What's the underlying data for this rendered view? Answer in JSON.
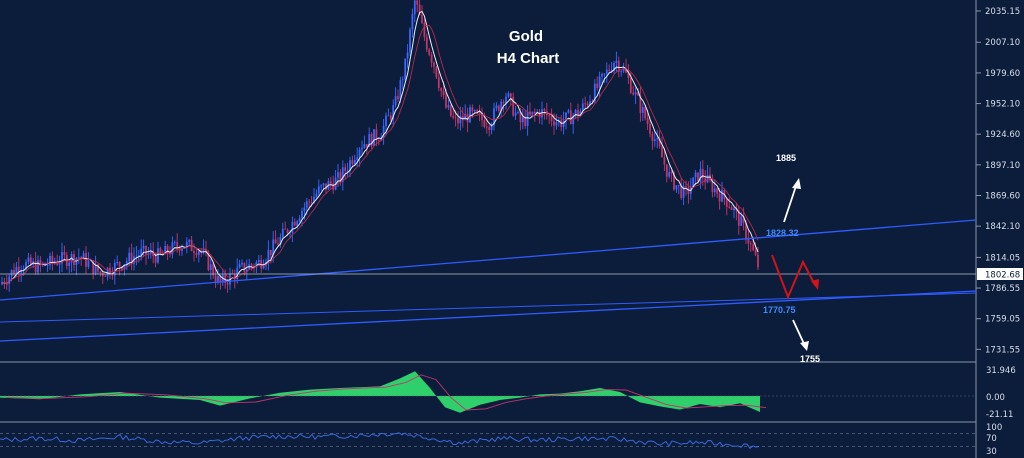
{
  "chart_data": {
    "type": "candlestick",
    "title": "Gold",
    "subtitle": "H4 Chart",
    "instrument": "Gold",
    "timeframe": "H4",
    "price_axis": {
      "ticks": [
        "2035.15",
        "2007.10",
        "1979.60",
        "1952.10",
        "1924.60",
        "1897.10",
        "1869.60",
        "1842.10",
        "1814.05",
        "1786.55",
        "1759.05",
        "1731.55"
      ],
      "range": [
        1722,
        2045
      ]
    },
    "current_price": {
      "label": "1802.68",
      "value": 1802.68
    },
    "annotations": [
      {
        "text": "1885",
        "value": 1885,
        "direction": "up"
      },
      {
        "text": "1828.32",
        "value": 1828.32,
        "kind": "resistance"
      },
      {
        "text": "1770.75",
        "value": 1770.75,
        "kind": "support"
      },
      {
        "text": "1755",
        "value": 1755,
        "direction": "down"
      }
    ],
    "price_path": [
      [
        0,
        1790
      ],
      [
        20,
        1808
      ],
      [
        40,
        1806
      ],
      [
        60,
        1812
      ],
      [
        80,
        1815
      ],
      [
        100,
        1800
      ],
      [
        120,
        1808
      ],
      [
        140,
        1818
      ],
      [
        160,
        1815
      ],
      [
        180,
        1826
      ],
      [
        200,
        1822
      ],
      [
        220,
        1790
      ],
      [
        240,
        1803
      ],
      [
        260,
        1810
      ],
      [
        280,
        1830
      ],
      [
        300,
        1855
      ],
      [
        320,
        1875
      ],
      [
        340,
        1885
      ],
      [
        360,
        1915
      ],
      [
        380,
        1925
      ],
      [
        395,
        1950
      ],
      [
        405,
        1985
      ],
      [
        415,
        2045
      ],
      [
        425,
        2010
      ],
      [
        435,
        1985
      ],
      [
        445,
        1950
      ],
      [
        455,
        1935
      ],
      [
        470,
        1942
      ],
      [
        490,
        1935
      ],
      [
        505,
        1962
      ],
      [
        520,
        1935
      ],
      [
        540,
        1945
      ],
      [
        560,
        1935
      ],
      [
        580,
        1945
      ],
      [
        600,
        1970
      ],
      [
        615,
        1992
      ],
      [
        625,
        1980
      ],
      [
        640,
        1950
      ],
      [
        655,
        1920
      ],
      [
        670,
        1885
      ],
      [
        685,
        1870
      ],
      [
        700,
        1890
      ],
      [
        715,
        1875
      ],
      [
        730,
        1862
      ],
      [
        745,
        1838
      ],
      [
        760,
        1802
      ]
    ],
    "oscillator": {
      "ticks": [
        "31.946",
        "0.00",
        "-21.11"
      ],
      "range": [
        -30,
        40
      ],
      "values": [
        [
          0,
          -2
        ],
        [
          40,
          -4
        ],
        [
          80,
          2
        ],
        [
          120,
          5
        ],
        [
          160,
          -2
        ],
        [
          200,
          -5
        ],
        [
          220,
          -12
        ],
        [
          250,
          -3
        ],
        [
          280,
          4
        ],
        [
          310,
          8
        ],
        [
          340,
          10
        ],
        [
          380,
          12
        ],
        [
          400,
          22
        ],
        [
          415,
          31
        ],
        [
          430,
          10
        ],
        [
          445,
          -14
        ],
        [
          460,
          -21
        ],
        [
          480,
          -11
        ],
        [
          500,
          -5
        ],
        [
          520,
          -2
        ],
        [
          540,
          2
        ],
        [
          560,
          3
        ],
        [
          580,
          6
        ],
        [
          600,
          10
        ],
        [
          620,
          5
        ],
        [
          640,
          -8
        ],
        [
          660,
          -13
        ],
        [
          680,
          -17
        ],
        [
          700,
          -10
        ],
        [
          720,
          -14
        ],
        [
          740,
          -9
        ],
        [
          760,
          -20
        ]
      ]
    },
    "rsi": {
      "ticks": [
        "100",
        "70",
        "30"
      ],
      "range": [
        0,
        100
      ],
      "values": [
        [
          0,
          50
        ],
        [
          40,
          55
        ],
        [
          80,
          48
        ],
        [
          120,
          60
        ],
        [
          160,
          45
        ],
        [
          200,
          40
        ],
        [
          240,
          55
        ],
        [
          280,
          62
        ],
        [
          320,
          60
        ],
        [
          360,
          65
        ],
        [
          400,
          72
        ],
        [
          420,
          62
        ],
        [
          460,
          40
        ],
        [
          500,
          55
        ],
        [
          540,
          50
        ],
        [
          580,
          55
        ],
        [
          620,
          52
        ],
        [
          660,
          38
        ],
        [
          700,
          42
        ],
        [
          740,
          35
        ],
        [
          760,
          28
        ]
      ]
    },
    "grid": false
  },
  "colors": {
    "background": "#0c1d3b",
    "trendline": "#2f5bff",
    "forecast": "#d3121a",
    "oscillator_fill": "#2fd06c",
    "candle_up": "#3a67ff",
    "candle_down": "#c0366a"
  }
}
